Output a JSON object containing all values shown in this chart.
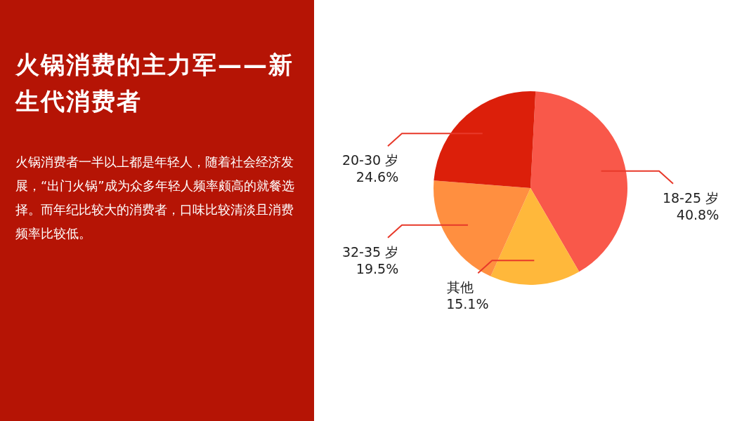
{
  "chart_data": {
    "type": "pie",
    "title": "火锅消费的主力军——新生代消费者",
    "subtitle": "火锅消费者一半以上都是年轻人，随着社会经济发展，“出门火锅”成为众多年轻人频率颇高的就餐选择。而年纪比较大的消费者，口味比较清淡且消费频率比较低。",
    "categories": [
      "18-25 岁",
      "其他",
      "32-35 岁",
      "20-30 岁"
    ],
    "values": [
      40.8,
      15.1,
      19.5,
      24.6
    ],
    "value_labels": [
      "40.8%",
      "15.1%",
      "19.5%",
      "24.6%"
    ],
    "colors": [
      "#f9584a",
      "#ffb83b",
      "#ff8f40",
      "#dc1f0a"
    ],
    "legend": false
  }
}
